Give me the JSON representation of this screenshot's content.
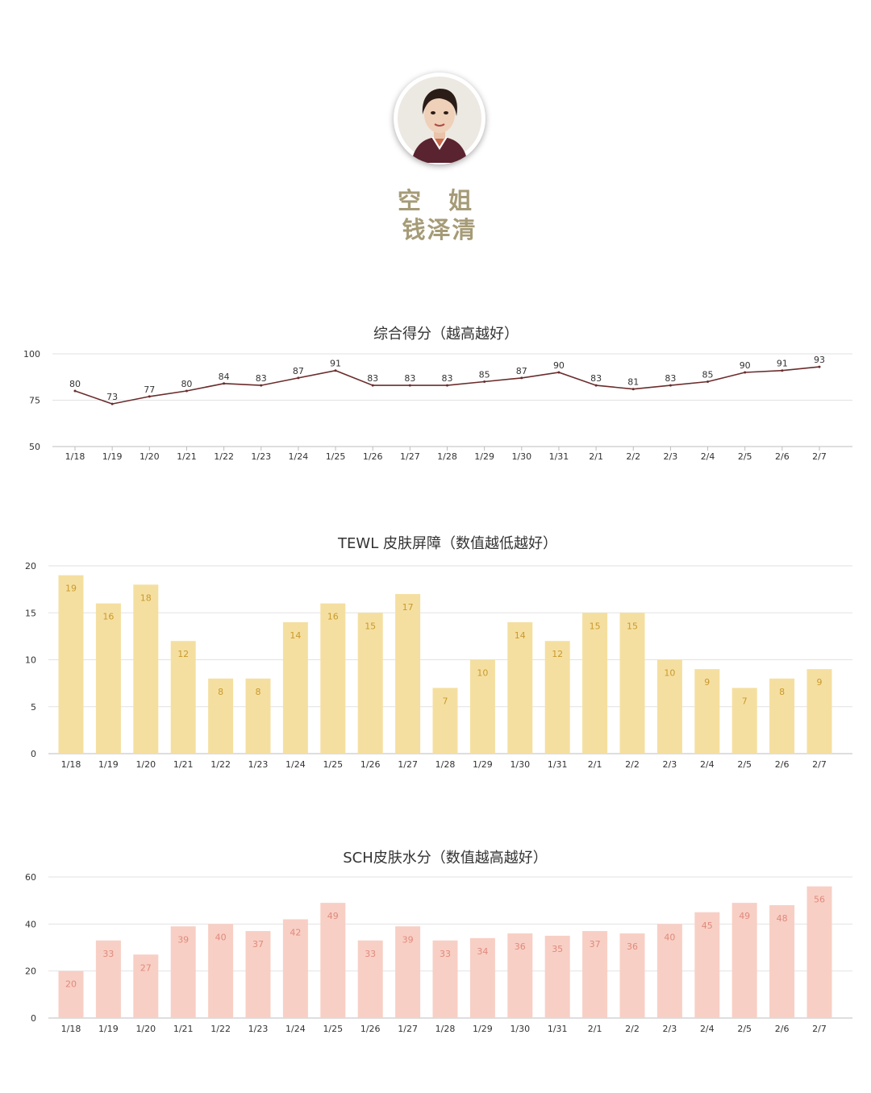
{
  "profile": {
    "role": "空 姐",
    "name": "钱泽清"
  },
  "colors": {
    "accent": "#a59b77",
    "score_line": "#6b2c2c",
    "tewl_bar": "#f5dfa0",
    "tewl_label": "#c99a2e",
    "sch_bar": "#f8cfc5",
    "sch_label": "#e08a7c",
    "grid": "#e2e2e2",
    "axis": "#bdbdbd"
  },
  "chart_data": [
    {
      "id": "score",
      "type": "line",
      "title": "综合得分（越高越好）",
      "categories": [
        "1/18",
        "1/19",
        "1/20",
        "1/21",
        "1/22",
        "1/23",
        "1/24",
        "1/25",
        "1/26",
        "1/27",
        "1/28",
        "1/29",
        "1/30",
        "1/31",
        "2/1",
        "2/2",
        "2/3",
        "2/4",
        "2/5",
        "2/6",
        "2/7"
      ],
      "series": [
        {
          "values": [
            80,
            73,
            77,
            80,
            84,
            83,
            87,
            91,
            83,
            83,
            83,
            85,
            87,
            90,
            83,
            81,
            83,
            85,
            90,
            91,
            93
          ]
        }
      ],
      "ylim": [
        50,
        100
      ],
      "yticks": [
        50,
        75,
        100
      ],
      "grid": true
    },
    {
      "id": "tewl",
      "type": "bar",
      "title": "TEWL 皮肤屏障（数值越低越好）",
      "categories": [
        "1/18",
        "1/19",
        "1/20",
        "1/21",
        "1/22",
        "1/23",
        "1/24",
        "1/25",
        "1/26",
        "1/27",
        "1/28",
        "1/29",
        "1/30",
        "1/31",
        "2/1",
        "2/2",
        "2/3",
        "2/4",
        "2/5",
        "2/6",
        "2/7"
      ],
      "series": [
        {
          "values": [
            19,
            16,
            18,
            12,
            8,
            8,
            14,
            16,
            15,
            17,
            7,
            10,
            14,
            12,
            15,
            15,
            10,
            9,
            7,
            8,
            9
          ]
        }
      ],
      "ylim": [
        0,
        20
      ],
      "yticks": [
        0,
        5,
        10,
        15,
        20
      ],
      "grid": true
    },
    {
      "id": "sch",
      "type": "bar",
      "title": "SCH皮肤水分（数值越高越好）",
      "categories": [
        "1/18",
        "1/19",
        "1/20",
        "1/21",
        "1/22",
        "1/23",
        "1/24",
        "1/25",
        "1/26",
        "1/27",
        "1/28",
        "1/29",
        "1/30",
        "1/31",
        "2/1",
        "2/2",
        "2/3",
        "2/4",
        "2/5",
        "2/6",
        "2/7"
      ],
      "series": [
        {
          "values": [
            20,
            33,
            27,
            39,
            40,
            37,
            42,
            49,
            33,
            39,
            33,
            34,
            36,
            35,
            37,
            36,
            40,
            45,
            49,
            48,
            56
          ]
        }
      ],
      "ylim": [
        0,
        60
      ],
      "yticks": [
        0,
        20,
        40,
        60
      ],
      "grid": true
    }
  ]
}
